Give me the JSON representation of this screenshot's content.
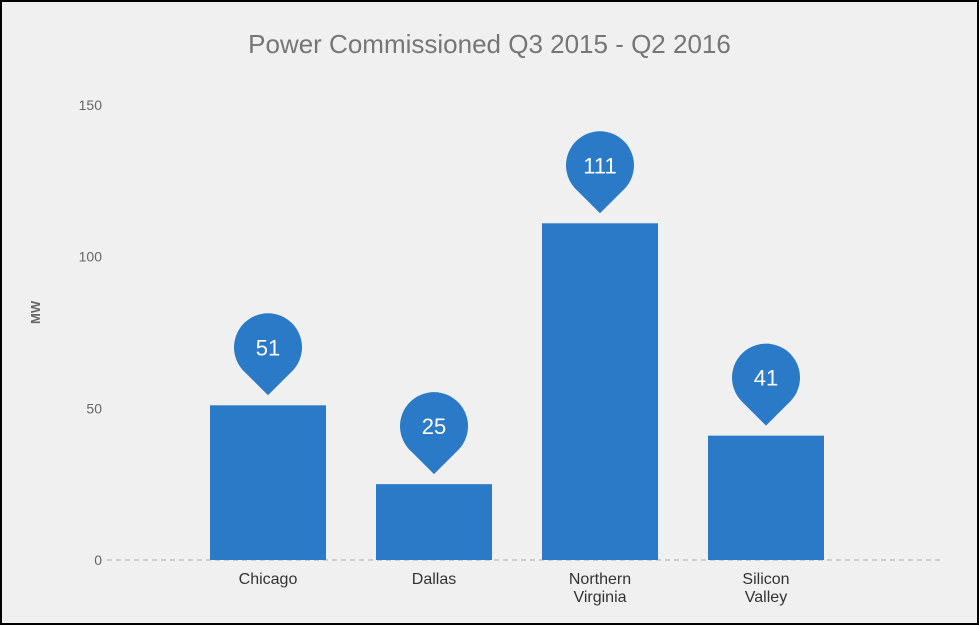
{
  "chart_data": {
    "type": "bar",
    "title": "Power Commissioned Q3 2015 - Q2 2016",
    "xlabel": "",
    "ylabel": "MW",
    "ylim": [
      0,
      150
    ],
    "yticks": [
      "0",
      "50",
      "100",
      "150"
    ],
    "categories": [
      [
        "Chicago"
      ],
      [
        "Dallas"
      ],
      [
        "Northern",
        "Virginia"
      ],
      [
        "Silicon",
        "Valley"
      ]
    ],
    "values": [
      51,
      25,
      111,
      41
    ],
    "data_labels": [
      "51",
      "25",
      "111",
      "41"
    ],
    "grid": false,
    "legend": "none",
    "colors": {
      "bar": "#2a7ac8",
      "pin": "#2a7ac8",
      "pin_text": "#ffffff",
      "tick_text": "#666666",
      "category_text": "#333333",
      "baseline": "#aaaaaa"
    }
  }
}
